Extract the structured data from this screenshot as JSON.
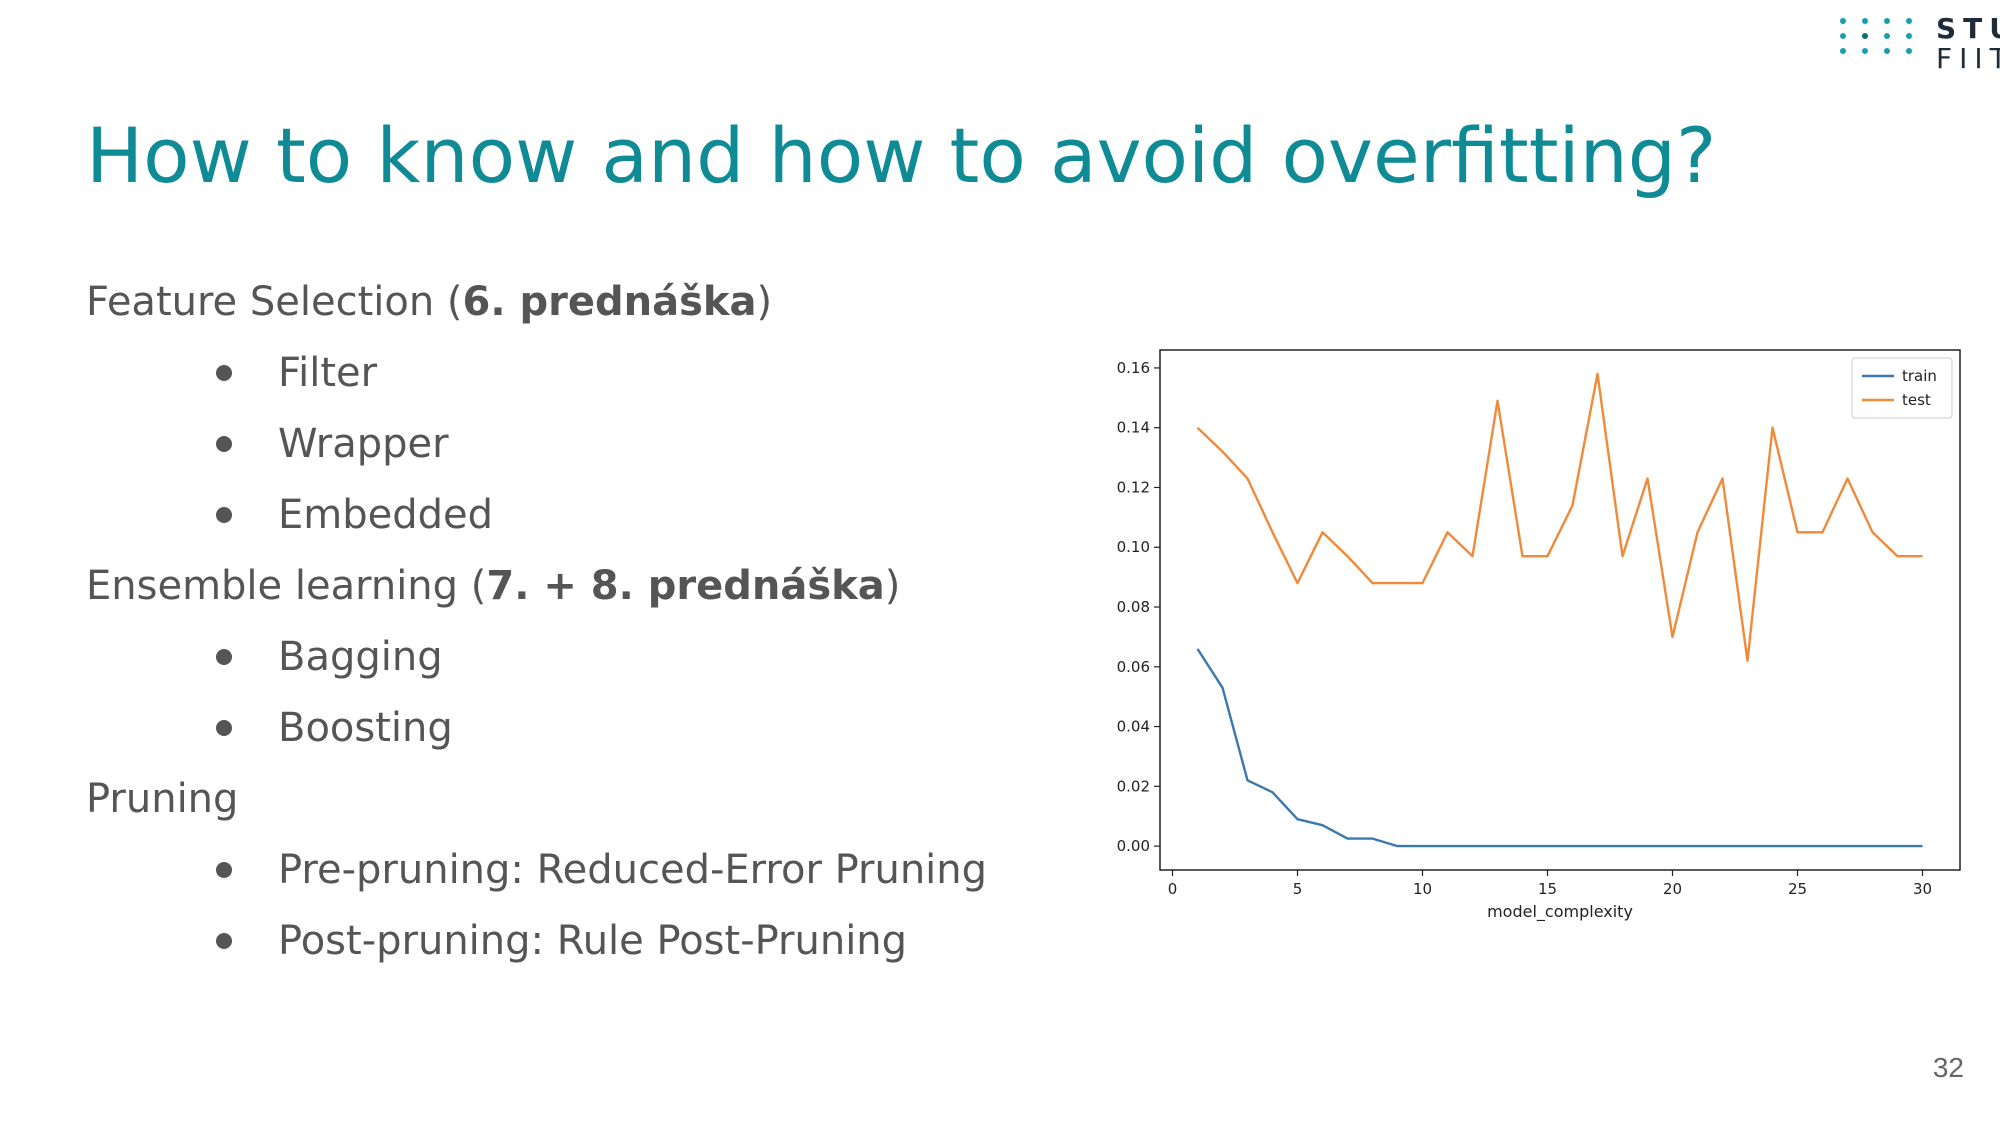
{
  "title": "How to know and how to avoid overfitting?",
  "logo": {
    "line1": "STU",
    "line2": "FIIT"
  },
  "sections": [
    {
      "text": "Feature Selection ",
      "bold": "6. prednáška",
      "items": [
        "Filter",
        "Wrapper",
        "Embedded"
      ]
    },
    {
      "text": "Ensemble learning ",
      "bold": "7. + 8. prednáška",
      "items": [
        "Bagging",
        "Boosting"
      ]
    },
    {
      "text": "Pruning",
      "bold": "",
      "items": [
        "Pre-pruning: Reduced-Error Pruning",
        "Post-pruning: Rule Post-Pruning"
      ]
    }
  ],
  "page_number": "32",
  "chart_data": {
    "type": "line",
    "x": [
      1,
      2,
      3,
      4,
      5,
      6,
      7,
      8,
      9,
      10,
      11,
      12,
      13,
      14,
      15,
      16,
      17,
      18,
      19,
      20,
      21,
      22,
      23,
      24,
      25,
      26,
      27,
      28,
      29,
      30
    ],
    "series": [
      {
        "name": "train",
        "color": "#3a78b0",
        "values": [
          0.066,
          0.053,
          0.022,
          0.018,
          0.009,
          0.007,
          0.0025,
          0.0025,
          0,
          0,
          0,
          0,
          0,
          0,
          0,
          0,
          0,
          0,
          0,
          0,
          0,
          0,
          0,
          0,
          0,
          0,
          0,
          0,
          0,
          0
        ]
      },
      {
        "name": "test",
        "color": "#f08a3a",
        "values": [
          0.14,
          0.132,
          0.123,
          0.105,
          0.088,
          0.105,
          0.097,
          0.088,
          0.088,
          0.088,
          0.105,
          0.097,
          0.149,
          0.097,
          0.097,
          0.114,
          0.158,
          0.097,
          0.123,
          0.07,
          0.105,
          0.123,
          0.062,
          0.14,
          0.105,
          0.105,
          0.123,
          0.105,
          0.097,
          0.097
        ]
      }
    ],
    "xlabel": "model_complexity",
    "ylabel": "",
    "xlim": [
      -0.5,
      31.5
    ],
    "ylim": [
      -0.008,
      0.166
    ],
    "xticks": [
      0,
      5,
      10,
      15,
      20,
      25,
      30
    ],
    "yticks": [
      "0.00",
      "0.02",
      "0.04",
      "0.06",
      "0.08",
      "0.10",
      "0.12",
      "0.14",
      "0.16"
    ],
    "legend_position": "top-right",
    "grid": false
  }
}
